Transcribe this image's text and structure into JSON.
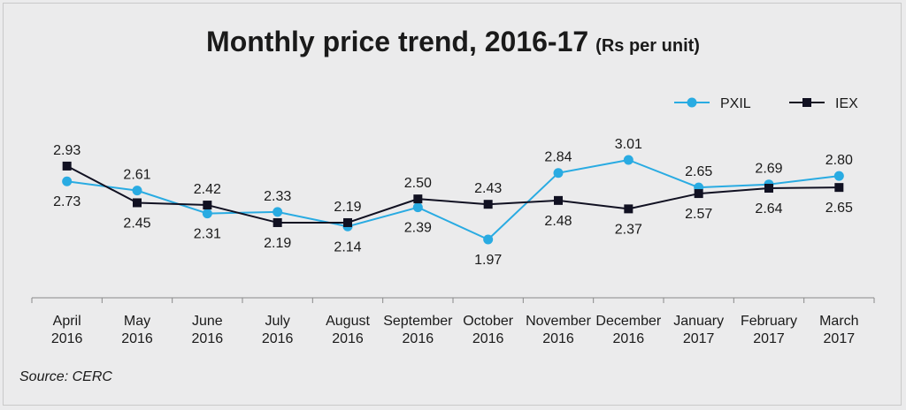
{
  "chart_data": {
    "type": "line",
    "title": "Monthly price trend, 2016-17",
    "subtitle": "(Rs per unit)",
    "categories": [
      [
        "April",
        "2016"
      ],
      [
        "May",
        "2016"
      ],
      [
        "June",
        "2016"
      ],
      [
        "July",
        "2016"
      ],
      [
        "August",
        "2016"
      ],
      [
        "September",
        "2016"
      ],
      [
        "October",
        "2016"
      ],
      [
        "November",
        "2016"
      ],
      [
        "December",
        "2016"
      ],
      [
        "January",
        "2017"
      ],
      [
        "February",
        "2017"
      ],
      [
        "March",
        "2017"
      ]
    ],
    "series": [
      {
        "name": "PXIL",
        "color": "#29abe2",
        "marker": "circle",
        "values": [
          2.73,
          2.61,
          2.31,
          2.33,
          2.14,
          2.39,
          1.97,
          2.84,
          3.01,
          2.65,
          2.69,
          2.8
        ],
        "labels": [
          "2.73",
          "2.61",
          "2.31",
          "2.33",
          "2.14",
          "2.39",
          "1.97",
          "2.84",
          "3.01",
          "2.65",
          "2.69",
          "2.80"
        ]
      },
      {
        "name": "IEX",
        "color": "#111122",
        "marker": "square",
        "values": [
          2.93,
          2.45,
          2.42,
          2.19,
          2.19,
          2.5,
          2.43,
          2.48,
          2.37,
          2.57,
          2.64,
          2.65
        ],
        "labels": [
          "2.93",
          "2.45",
          "2.42",
          "2.19",
          "2.19",
          "2.50",
          "2.43",
          "2.48",
          "2.37",
          "2.57",
          "2.64",
          "2.65"
        ]
      }
    ],
    "xlabel": "",
    "ylabel": "",
    "grid": false,
    "legend": "top-right",
    "source": "Source: CERC"
  }
}
